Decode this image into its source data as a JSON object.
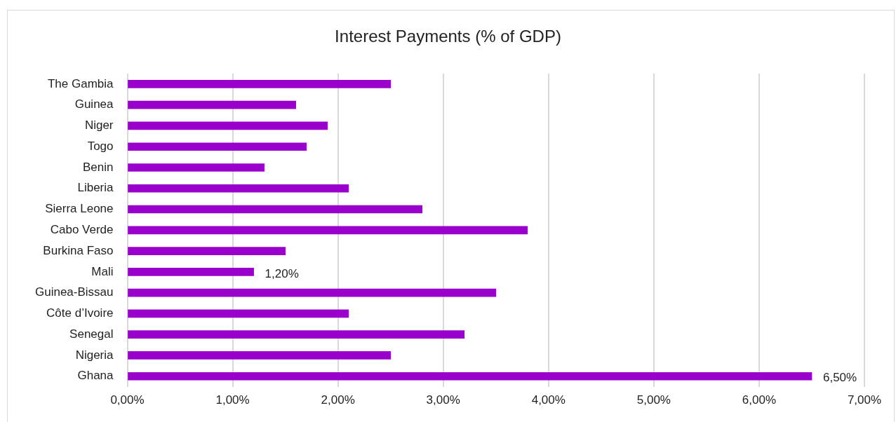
{
  "chart_data": {
    "type": "bar",
    "orientation": "horizontal",
    "title": "Interest Payments (% of GDP)",
    "categories": [
      "The Gambia",
      "Guinea",
      "Niger",
      "Togo",
      "Benin",
      "Liberia",
      "Sierra Leone",
      "Cabo Verde",
      "Burkina Faso",
      "Mali",
      "Guinea-Bissau",
      "Côte d’Ivoire",
      "Senegal",
      "Nigeria",
      "Ghana"
    ],
    "values": [
      2.5,
      1.6,
      1.9,
      1.7,
      1.3,
      2.1,
      2.8,
      3.8,
      1.5,
      1.2,
      3.5,
      2.1,
      3.2,
      2.5,
      6.5
    ],
    "value_labels": [
      null,
      null,
      null,
      null,
      null,
      null,
      null,
      null,
      null,
      "1,20%",
      null,
      null,
      null,
      null,
      "6,50%"
    ],
    "color": "#9900cc",
    "xlim": [
      0,
      7
    ],
    "xticks": [
      {
        "value": 0,
        "label": "0,00%"
      },
      {
        "value": 1,
        "label": "1,00%"
      },
      {
        "value": 2,
        "label": "2,00%"
      },
      {
        "value": 3,
        "label": "3,00%"
      },
      {
        "value": 4,
        "label": "4,00%"
      },
      {
        "value": 5,
        "label": "5,00%"
      },
      {
        "value": 6,
        "label": "6,00%"
      },
      {
        "value": 7,
        "label": "7,00%"
      }
    ],
    "grid": "x",
    "legend": false
  }
}
